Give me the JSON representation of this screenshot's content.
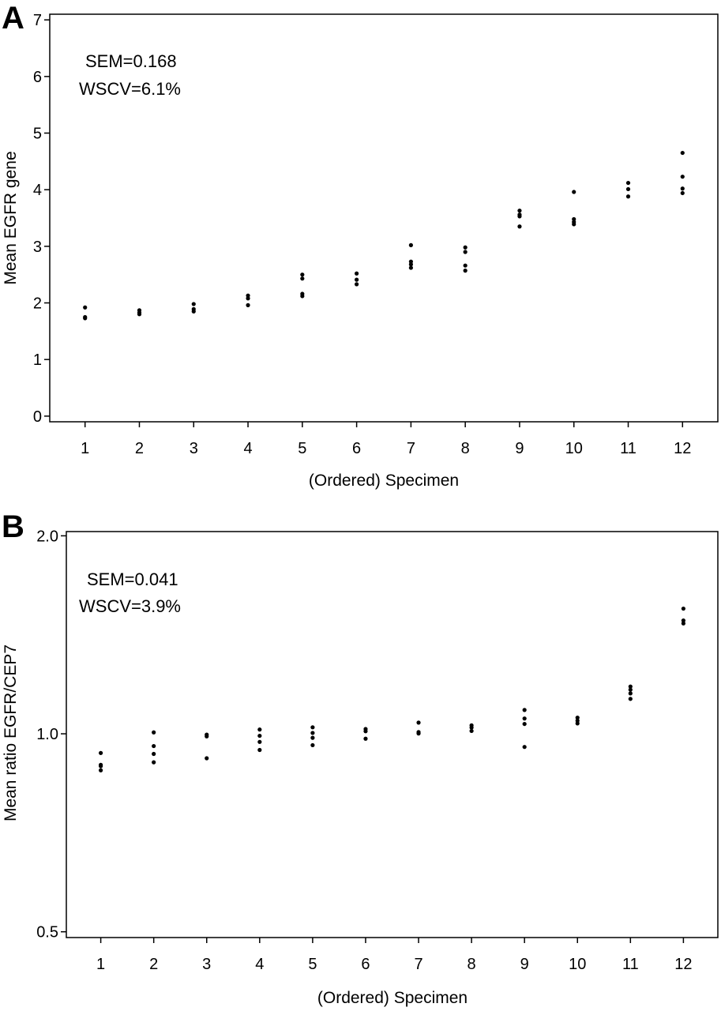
{
  "chart_data": [
    {
      "panel": "A",
      "type": "scatter",
      "title": "",
      "xlabel": "(Ordered) Specimen",
      "ylabel": "Mean EGFR gene",
      "xlim": [
        0.35,
        12.65
      ],
      "ylim": [
        -0.1,
        7.1
      ],
      "x_ticks": [
        "1",
        "2",
        "3",
        "4",
        "5",
        "6",
        "7",
        "8",
        "9",
        "10",
        "11",
        "12"
      ],
      "y_ticks": [
        "0",
        "1",
        "2",
        "3",
        "4",
        "5",
        "6",
        "7"
      ],
      "y_tick_values": [
        0,
        1,
        2,
        3,
        4,
        5,
        6,
        7
      ],
      "log_scale": false,
      "grid": false,
      "annotations": [
        "SEM=0.168",
        "WSCV=6.1%"
      ],
      "points": [
        {
          "x": 1,
          "y": [
            1.92,
            1.75,
            1.73
          ]
        },
        {
          "x": 2,
          "y": [
            1.87,
            1.83,
            1.8
          ]
        },
        {
          "x": 3,
          "y": [
            1.98,
            1.89,
            1.85
          ]
        },
        {
          "x": 4,
          "y": [
            2.13,
            2.08,
            1.96
          ]
        },
        {
          "x": 5,
          "y": [
            2.5,
            2.43,
            2.16,
            2.12
          ]
        },
        {
          "x": 6,
          "y": [
            2.52,
            2.41,
            2.33
          ]
        },
        {
          "x": 7,
          "y": [
            3.02,
            2.73,
            2.68,
            2.62
          ]
        },
        {
          "x": 8,
          "y": [
            2.98,
            2.9,
            2.66,
            2.57
          ]
        },
        {
          "x": 9,
          "y": [
            3.63,
            3.56,
            3.53,
            3.35
          ]
        },
        {
          "x": 10,
          "y": [
            3.96,
            3.48,
            3.43,
            3.39
          ]
        },
        {
          "x": 11,
          "y": [
            4.12,
            4.01,
            3.88
          ]
        },
        {
          "x": 12,
          "y": [
            4.65,
            4.23,
            4.02,
            3.94
          ]
        }
      ]
    },
    {
      "panel": "B",
      "type": "scatter",
      "title": "",
      "xlabel": "(Ordered) Specimen",
      "ylabel": "Mean ratio EGFR/CEP7",
      "xlim": [
        0.35,
        12.65
      ],
      "ylim": [
        0.49,
        2.03
      ],
      "x_ticks": [
        "1",
        "2",
        "3",
        "4",
        "5",
        "6",
        "7",
        "8",
        "9",
        "10",
        "11",
        "12"
      ],
      "y_ticks": [
        "0.5",
        "1.0",
        "2.0"
      ],
      "y_tick_values": [
        0.5,
        1.0,
        2.0
      ],
      "log_scale": true,
      "grid": false,
      "annotations": [
        "SEM=0.041",
        "WSCV=3.9%"
      ],
      "points": [
        {
          "x": 1,
          "y": [
            0.935,
            0.897,
            0.893,
            0.88
          ]
        },
        {
          "x": 2,
          "y": [
            1.005,
            0.958,
            0.932,
            0.905
          ]
        },
        {
          "x": 3,
          "y": [
            0.997,
            0.991,
            0.918
          ]
        },
        {
          "x": 4,
          "y": [
            1.015,
            0.993,
            0.972,
            0.945
          ]
        },
        {
          "x": 5,
          "y": [
            1.023,
            1.003,
            0.986,
            0.961
          ]
        },
        {
          "x": 6,
          "y": [
            1.017,
            1.009,
            0.983
          ]
        },
        {
          "x": 7,
          "y": [
            1.04,
            1.006,
            1.001
          ]
        },
        {
          "x": 8,
          "y": [
            1.03,
            1.022,
            1.01
          ]
        },
        {
          "x": 9,
          "y": [
            1.087,
            1.055,
            1.035,
            0.955
          ]
        },
        {
          "x": 10,
          "y": [
            1.058,
            1.047,
            1.037
          ]
        },
        {
          "x": 11,
          "y": [
            1.18,
            1.167,
            1.152,
            1.13
          ]
        },
        {
          "x": 12,
          "y": [
            1.55,
            1.487,
            1.472
          ]
        }
      ]
    }
  ]
}
